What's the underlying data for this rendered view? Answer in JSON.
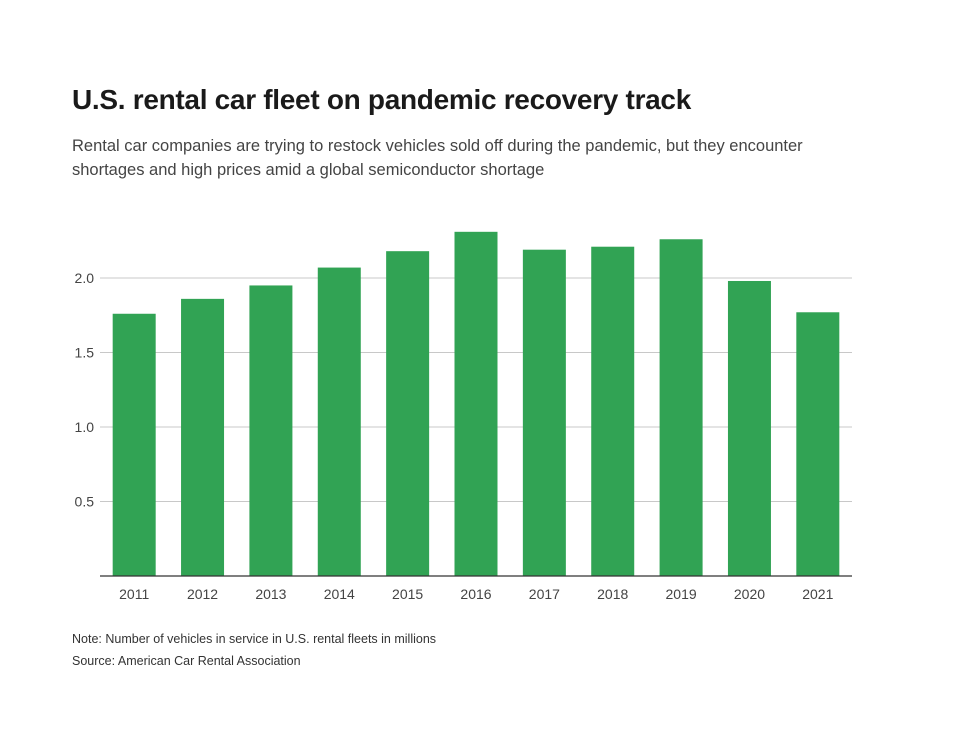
{
  "chart_data": {
    "type": "bar",
    "title": "U.S. rental car fleet on pandemic recovery track",
    "subtitle": "Rental car companies are trying to restock vehicles sold off during the pandemic, but they encounter shortages and high prices amid a global semiconductor shortage",
    "categories": [
      "2011",
      "2012",
      "2013",
      "2014",
      "2015",
      "2016",
      "2017",
      "2018",
      "2019",
      "2020",
      "2021"
    ],
    "values": [
      1.76,
      1.86,
      1.95,
      2.07,
      2.18,
      2.31,
      2.19,
      2.21,
      2.26,
      1.98,
      1.77
    ],
    "xlabel": "",
    "ylabel": "",
    "ylim": [
      0,
      2.0
    ],
    "yticks": [
      "0.5",
      "1.0",
      "1.5",
      "2.0"
    ],
    "ytick_values": [
      0.5,
      1.0,
      1.5,
      2.0
    ],
    "grid": true,
    "bar_color": "#31a354",
    "note": "Note: Number of vehicles in service in U.S. rental fleets in millions",
    "source": "Source: American Car Rental Association"
  }
}
